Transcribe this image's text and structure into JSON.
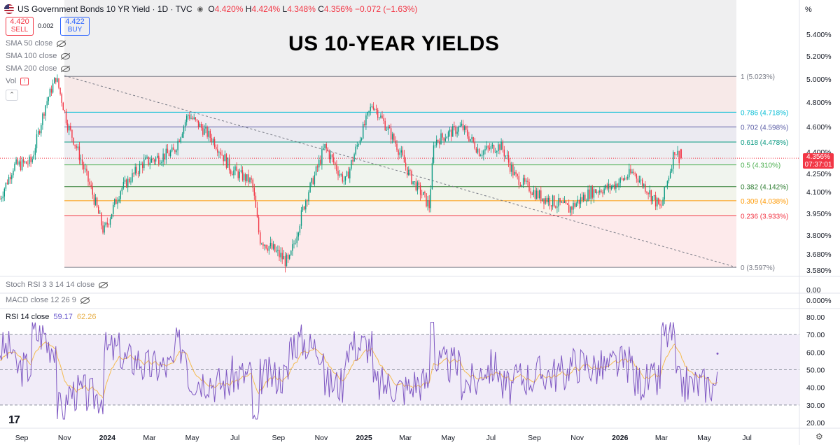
{
  "header": {
    "symbol": "US Government Bonds 10 YR Yield · 1D · TVC",
    "eye": "◉",
    "o_label": "O",
    "o_val": "4.420%",
    "h_label": "H",
    "h_val": "4.424%",
    "l_label": "L",
    "l_val": "4.348%",
    "c_label": "C",
    "c_val": "4.356%",
    "change": "−0.072 (−1.63%)"
  },
  "trade": {
    "sell_price": "4.420",
    "sell_label": "SELL",
    "spread": "0.002",
    "buy_price": "4.422",
    "buy_label": "BUY"
  },
  "indicators": {
    "sma50": "SMA 50 close",
    "sma100": "SMA 100 close",
    "sma200": "SMA 200 close",
    "vol": "Vol",
    "stoch": "Stoch RSI 3 3 14 14 close",
    "macd": "MACD close 12 26 9",
    "rsi": "RSI 14 close",
    "rsi_value": "59.17",
    "rsi_ma": "62.26"
  },
  "title": "US 10-YEAR YIELDS",
  "price_tag": {
    "value": "4.356%",
    "countdown": "07:37:01",
    "color": "#f23645"
  },
  "axis_unit": "%",
  "logo": "17",
  "colors": {
    "up": "#089981",
    "down": "#f23645",
    "rsi": "#7e57c2",
    "rsi_ma": "#f5b63e"
  },
  "chart_data": [
    {
      "type": "candlestick",
      "title": "US 10-YEAR YIELDS",
      "ylabel": "%",
      "y_ticks": [
        {
          "v": 5.4,
          "label": "5.400%"
        },
        {
          "v": 5.2,
          "label": "5.200%"
        },
        {
          "v": 5.0,
          "label": "5.000%"
        },
        {
          "v": 4.8,
          "label": "4.800%"
        },
        {
          "v": 4.6,
          "label": "4.600%"
        },
        {
          "v": 4.4,
          "label": "4.400%"
        },
        {
          "v": 4.25,
          "label": "4.250%"
        },
        {
          "v": 4.1,
          "label": "4.100%"
        },
        {
          "v": 3.95,
          "label": "3.950%"
        },
        {
          "v": 3.8,
          "label": "3.800%"
        },
        {
          "v": 3.68,
          "label": "3.680%"
        },
        {
          "v": 3.58,
          "label": "3.580%"
        }
      ],
      "x_ticks": [
        "Sep",
        "Nov",
        "2024",
        "Mar",
        "May",
        "Jul",
        "Sep",
        "Nov",
        "2025",
        "Mar",
        "May",
        "Jul",
        "Sep",
        "Nov",
        "2026",
        "Mar",
        "May",
        "Jul"
      ],
      "x_tick_bold": [
        false,
        false,
        true,
        false,
        false,
        false,
        false,
        false,
        true,
        false,
        false,
        false,
        false,
        false,
        true,
        false,
        false,
        false
      ],
      "fib_levels": [
        {
          "ratio": "1",
          "value": 5.023,
          "label": "1 (5.023%)",
          "color": "#787b86"
        },
        {
          "ratio": "0.786",
          "value": 4.718,
          "label": "0.786 (4.718%)",
          "color": "#00bcd4"
        },
        {
          "ratio": "0.702",
          "value": 4.598,
          "label": "0.702 (4.598%)",
          "color": "#5b5ea6"
        },
        {
          "ratio": "0.618",
          "value": 4.478,
          "label": "0.618 (4.478%)",
          "color": "#089981"
        },
        {
          "ratio": "0.5",
          "value": 4.31,
          "label": "0.5 (4.310%)",
          "color": "#4caf50"
        },
        {
          "ratio": "0.382",
          "value": 4.142,
          "label": "0.382 (4.142%)",
          "color": "#2e7d32"
        },
        {
          "ratio": "0.309",
          "value": 4.038,
          "label": "0.309 (4.038%)",
          "color": "#ff9800"
        },
        {
          "ratio": "0.236",
          "value": 3.933,
          "label": "0.236 (3.933%)",
          "color": "#f23645"
        },
        {
          "ratio": "0",
          "value": 3.597,
          "label": "0 (3.597%)",
          "color": "#787b86"
        }
      ],
      "close_path": [
        {
          "date": "2023-08",
          "v": 4.05
        },
        {
          "date": "2023-08-20",
          "v": 4.3
        },
        {
          "date": "2023-09-15",
          "v": 4.33
        },
        {
          "date": "2023-10-05",
          "v": 4.78
        },
        {
          "date": "2023-10-20",
          "v": 5.02
        },
        {
          "date": "2023-11-05",
          "v": 4.62
        },
        {
          "date": "2023-12-01",
          "v": 4.25
        },
        {
          "date": "2023-12-27",
          "v": 3.82
        },
        {
          "date": "2024-01-20",
          "v": 4.12
        },
        {
          "date": "2024-02-20",
          "v": 4.32
        },
        {
          "date": "2024-04-05",
          "v": 4.4
        },
        {
          "date": "2024-04-25",
          "v": 4.7
        },
        {
          "date": "2024-05-30",
          "v": 4.5
        },
        {
          "date": "2024-06-25",
          "v": 4.28
        },
        {
          "date": "2024-07-25",
          "v": 4.18
        },
        {
          "date": "2024-08-05",
          "v": 3.78
        },
        {
          "date": "2024-09-16",
          "v": 3.62
        },
        {
          "date": "2024-10-10",
          "v": 4.05
        },
        {
          "date": "2024-11-06",
          "v": 4.44
        },
        {
          "date": "2024-12-05",
          "v": 4.18
        },
        {
          "date": "2025-01-13",
          "v": 4.79
        },
        {
          "date": "2025-02-14",
          "v": 4.48
        },
        {
          "date": "2025-03-10",
          "v": 4.2
        },
        {
          "date": "2025-04-04",
          "v": 4.0
        },
        {
          "date": "2025-04-11",
          "v": 4.48
        },
        {
          "date": "2025-05-20",
          "v": 4.6
        },
        {
          "date": "2025-06-15",
          "v": 4.4
        },
        {
          "date": "2025-07-15",
          "v": 4.45
        },
        {
          "date": "2025-08-05",
          "v": 4.22
        },
        {
          "date": "2025-09-05",
          "v": 4.08
        },
        {
          "date": "2025-10-20",
          "v": 3.98
        },
        {
          "date": "2025-11-20",
          "v": 4.1
        },
        {
          "date": "2025-12-20",
          "v": 4.14
        },
        {
          "date": "2026-01-20",
          "v": 4.26
        },
        {
          "date": "2026-02-28",
          "v": 3.98
        },
        {
          "date": "2026-03-10",
          "v": 4.2
        },
        {
          "date": "2026-03-20",
          "v": 4.42
        },
        {
          "date": "2026-03-27",
          "v": 4.356
        }
      ],
      "last": {
        "open": 4.42,
        "high": 4.424,
        "low": 4.348,
        "close": 4.356
      }
    },
    {
      "type": "line",
      "title": "RSI 14 close",
      "ylim": [
        20,
        80
      ],
      "y_ticks": [
        "80.00",
        "70.00",
        "60.00",
        "50.00",
        "40.00",
        "30.00",
        "20.00"
      ],
      "bands": [
        30,
        50,
        70
      ],
      "last_rsi": 59.17,
      "last_ma": 62.26
    },
    {
      "type": "panel",
      "title": "Stoch RSI 3 3 14 14 close",
      "y_ticks": [
        "0.00"
      ]
    },
    {
      "type": "panel",
      "title": "MACD close 12 26 9",
      "y_ticks": [
        "0.000%"
      ]
    }
  ]
}
